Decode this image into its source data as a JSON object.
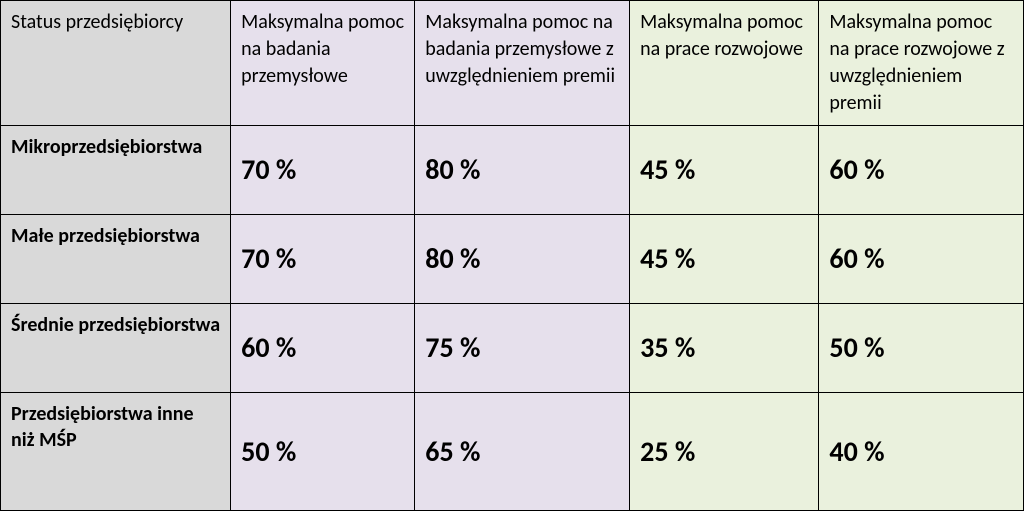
{
  "table": {
    "type": "table",
    "background_color": "#ffffff",
    "border_color": "#000000",
    "colors": {
      "label_bg": "#d9d9d9",
      "purple_bg": "#e6e0ec",
      "green_bg": "#eaf1dd",
      "text": "#000000"
    },
    "fonts": {
      "header_size": 20,
      "rowlabel_size": 20,
      "value_size": 28,
      "family": "Calibri"
    },
    "column_widths_pct": [
      22.5,
      18,
      21,
      18.5,
      20
    ],
    "columns": [
      "Status przedsiębiorcy",
      "Maksymalna pomoc na badania przemysłowe",
      "Maksymalna pomoc na badania przemysłowe z uwzględnieniem premii",
      "Maksymalna pomoc na prace rozwojowe",
      "Maksymalna pomoc na prace rozwojowe z uwzględnieniem premii"
    ],
    "column_groups": [
      "label",
      "purple",
      "purple",
      "green",
      "green"
    ],
    "rows": [
      {
        "label": "Mikroprzedsiębiorstwa",
        "values": [
          "70 %",
          "80 %",
          "45 %",
          "60 %"
        ]
      },
      {
        "label": "Małe przedsiębiorstwa",
        "values": [
          "70 %",
          "80 %",
          "45 %",
          "60 %"
        ]
      },
      {
        "label": "Średnie przedsiębiorstwa",
        "values": [
          "60 %",
          "75 %",
          "35 %",
          "50 %"
        ]
      },
      {
        "label": "Przedsiębiorstwa inne niż MŚP",
        "values": [
          "50 %",
          "65 %",
          "25 %",
          "40 %"
        ]
      }
    ]
  }
}
